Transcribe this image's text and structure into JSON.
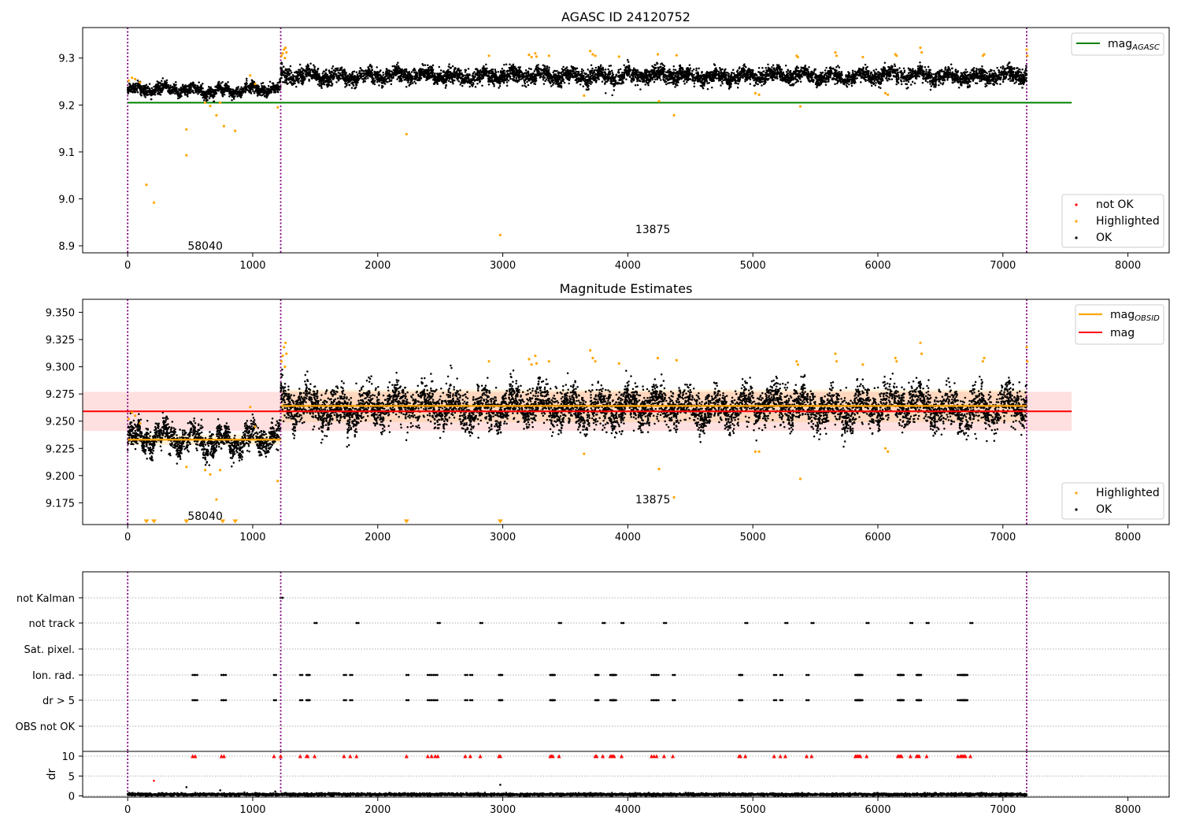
{
  "figure": {
    "background": "#ffffff"
  },
  "chart_data": [
    {
      "type": "scatter",
      "title": "AGASC ID 24120752",
      "xlabel": "",
      "ylabel": "",
      "xlim": [
        -360,
        8330
      ],
      "ylim": [
        8.885,
        9.365
      ],
      "xticks": [
        0,
        1000,
        2000,
        3000,
        4000,
        5000,
        6000,
        7000,
        8000
      ],
      "yticks": [
        8.9,
        9.0,
        9.1,
        9.2,
        9.3
      ],
      "ytick_labels": [
        "8.9",
        "9.0",
        "9.1",
        "9.2",
        "9.3"
      ],
      "obsid_boundaries": [
        0,
        1224,
        7190
      ],
      "annotations": [
        {
          "text": "58040",
          "x": 620,
          "y": 8.9
        },
        {
          "text": "13875",
          "x": 4200,
          "y": 8.935
        }
      ],
      "horizontal_lines": [
        {
          "name": "mag_AGASC",
          "y": 9.205,
          "x0": 0,
          "x1": 7550,
          "color": "#008000"
        }
      ],
      "legend_lines": [
        {
          "label": "mag",
          "subscript": "AGASC",
          "color": "#008000"
        }
      ],
      "legend_points": [
        {
          "label": "not OK",
          "color": "#ff0000"
        },
        {
          "label": "Highlighted",
          "color": "#ffa500"
        },
        {
          "label": "OK",
          "color": "#000000"
        }
      ],
      "legend_placement": "top-right and bottom-right",
      "grid": false,
      "ok_segments": [
        {
          "x0": 0,
          "x1": 1224,
          "mean": 9.232,
          "spread": 0.008
        },
        {
          "x0": 1224,
          "x1": 7190,
          "mean": 9.262,
          "spread": 0.011
        }
      ],
      "highlighted_points": [
        [
          8,
          9.252
        ],
        [
          35,
          9.258
        ],
        [
          60,
          9.255
        ],
        [
          100,
          9.248
        ],
        [
          150,
          9.03
        ],
        [
          210,
          8.992
        ],
        [
          470,
          9.148
        ],
        [
          470,
          9.093
        ],
        [
          620,
          9.205
        ],
        [
          660,
          9.198
        ],
        [
          710,
          9.178
        ],
        [
          740,
          9.205
        ],
        [
          770,
          9.155
        ],
        [
          860,
          9.145
        ],
        [
          980,
          9.263
        ],
        [
          1020,
          9.245
        ],
        [
          1200,
          9.195
        ],
        [
          1230,
          9.305
        ],
        [
          1240,
          9.31
        ],
        [
          1250,
          9.318
        ],
        [
          1258,
          9.3
        ],
        [
          1262,
          9.322
        ],
        [
          1270,
          9.312
        ],
        [
          2230,
          9.138
        ],
        [
          2980,
          8.923
        ],
        [
          2890,
          9.305
        ],
        [
          3210,
          9.307
        ],
        [
          3230,
          9.302
        ],
        [
          3260,
          9.31
        ],
        [
          3270,
          9.303
        ],
        [
          3370,
          9.305
        ],
        [
          3650,
          9.22
        ],
        [
          3700,
          9.315
        ],
        [
          3720,
          9.308
        ],
        [
          3740,
          9.305
        ],
        [
          3930,
          9.303
        ],
        [
          4240,
          9.308
        ],
        [
          4250,
          9.208
        ],
        [
          4370,
          9.178
        ],
        [
          4390,
          9.306
        ],
        [
          5020,
          9.225
        ],
        [
          5050,
          9.222
        ],
        [
          5350,
          9.305
        ],
        [
          5360,
          9.302
        ],
        [
          5380,
          9.197
        ],
        [
          5660,
          9.312
        ],
        [
          5670,
          9.305
        ],
        [
          5880,
          9.302
        ],
        [
          6060,
          9.225
        ],
        [
          6080,
          9.222
        ],
        [
          6140,
          9.308
        ],
        [
          6150,
          9.305
        ],
        [
          6340,
          9.322
        ],
        [
          6350,
          9.312
        ],
        [
          6840,
          9.305
        ],
        [
          6850,
          9.308
        ],
        [
          7190,
          9.318
        ],
        [
          7195,
          9.305
        ]
      ],
      "notok_points": []
    },
    {
      "type": "scatter",
      "title": "Magnitude Estimates",
      "xlabel": "",
      "ylabel": "",
      "xlim": [
        -360,
        8330
      ],
      "ylim": [
        9.155,
        9.362
      ],
      "xticks": [
        0,
        1000,
        2000,
        3000,
        4000,
        5000,
        6000,
        7000,
        8000
      ],
      "yticks": [
        9.175,
        9.2,
        9.225,
        9.25,
        9.275,
        9.3,
        9.325,
        9.35
      ],
      "ytick_labels": [
        "9.175",
        "9.200",
        "9.225",
        "9.250",
        "9.275",
        "9.300",
        "9.325",
        "9.350"
      ],
      "obsid_boundaries": [
        0,
        1224,
        7190
      ],
      "annotations": [
        {
          "text": "58040",
          "x": 620,
          "y": 9.163
        },
        {
          "text": "13875",
          "x": 4200,
          "y": 9.178
        }
      ],
      "mag": {
        "y": 9.259,
        "band": [
          9.241,
          9.277
        ],
        "x0": -360,
        "x1": 7550,
        "color": "#ff0000"
      },
      "mag_obsid": [
        {
          "x0": 0,
          "x1": 1224,
          "y": 9.233,
          "band": [
            9.228,
            9.238
          ]
        },
        {
          "x0": 1224,
          "x1": 7190,
          "y": 9.264,
          "band": [
            9.249,
            9.279
          ]
        }
      ],
      "legend_lines": [
        {
          "label": "mag",
          "subscript": "OBSID",
          "color": "#ffa500"
        },
        {
          "label": "mag",
          "subscript": "",
          "color": "#ff0000"
        }
      ],
      "legend_points": [
        {
          "label": "Highlighted",
          "color": "#ffa500"
        },
        {
          "label": "OK",
          "color": "#000000"
        }
      ],
      "legend_placement": "top-right and bottom-right",
      "grid": false,
      "ok_segments": [
        {
          "x0": 0,
          "x1": 1224,
          "mean": 9.233,
          "spread": 0.008
        },
        {
          "x0": 1224,
          "x1": 7190,
          "mean": 9.263,
          "spread": 0.012
        }
      ],
      "highlighted_points": [
        [
          8,
          9.252
        ],
        [
          35,
          9.258
        ],
        [
          60,
          9.255
        ],
        [
          100,
          9.248
        ],
        [
          470,
          9.208
        ],
        [
          620,
          9.205
        ],
        [
          660,
          9.201
        ],
        [
          710,
          9.178
        ],
        [
          740,
          9.205
        ],
        [
          980,
          9.263
        ],
        [
          1020,
          9.245
        ],
        [
          1200,
          9.195
        ],
        [
          1230,
          9.305
        ],
        [
          1240,
          9.31
        ],
        [
          1250,
          9.318
        ],
        [
          1258,
          9.3
        ],
        [
          1262,
          9.322
        ],
        [
          1270,
          9.312
        ],
        [
          2890,
          9.305
        ],
        [
          3210,
          9.307
        ],
        [
          3230,
          9.302
        ],
        [
          3260,
          9.31
        ],
        [
          3270,
          9.303
        ],
        [
          3370,
          9.305
        ],
        [
          3650,
          9.22
        ],
        [
          3700,
          9.315
        ],
        [
          3720,
          9.308
        ],
        [
          3740,
          9.305
        ],
        [
          3930,
          9.303
        ],
        [
          4240,
          9.308
        ],
        [
          4250,
          9.206
        ],
        [
          4370,
          9.18
        ],
        [
          4390,
          9.306
        ],
        [
          5020,
          9.222
        ],
        [
          5050,
          9.222
        ],
        [
          5350,
          9.305
        ],
        [
          5360,
          9.302
        ],
        [
          5380,
          9.197
        ],
        [
          5660,
          9.312
        ],
        [
          5670,
          9.305
        ],
        [
          5880,
          9.302
        ],
        [
          6060,
          9.225
        ],
        [
          6080,
          9.222
        ],
        [
          6140,
          9.308
        ],
        [
          6150,
          9.305
        ],
        [
          6340,
          9.322
        ],
        [
          6350,
          9.312
        ],
        [
          6840,
          9.305
        ],
        [
          6850,
          9.308
        ],
        [
          7190,
          9.318
        ],
        [
          7195,
          9.305
        ]
      ],
      "offscale_markers_x": [
        150,
        210,
        470,
        760,
        860,
        2230,
        2980
      ]
    },
    {
      "type": "scatter",
      "title": "",
      "xlabel": "",
      "ylabel": "",
      "xlim": [
        -360,
        8330
      ],
      "flag_rows": [
        "not Kalman",
        "not track",
        "Sat. pixel.",
        "Ion. rad.",
        "dr > 5",
        "OBS not OK"
      ],
      "obsid_boundaries": [
        0,
        1224,
        7190
      ],
      "grid": true,
      "flags": {
        "not Kalman": [
          1224
        ],
        "not track": [
          1495,
          1830,
          2480,
          2820,
          3450,
          3800,
          3950,
          4290,
          4940,
          5260,
          5470,
          5910,
          6260,
          6390,
          6740
        ],
        "Sat. pixel.": [],
        "Ion. rad.": [
          520,
          540,
          750,
          770,
          1170,
          1380,
          1430,
          1440,
          1730,
          1780,
          2230,
          2400,
          2430,
          2460,
          2700,
          2740,
          2970,
          2980,
          3380,
          3390,
          3400,
          3740,
          3750,
          3860,
          3870,
          3880,
          3890,
          4190,
          4210,
          4230,
          4360,
          4890,
          4900,
          5170,
          5220,
          5430,
          5820,
          5830,
          5840,
          5850,
          5860,
          6160,
          6170,
          6180,
          6190,
          6310,
          6320,
          6330,
          6640,
          6660,
          6670,
          6680,
          6690,
          6700
        ],
        "dr > 5": [
          520,
          540,
          750,
          770,
          1170,
          1380,
          1430,
          1440,
          1730,
          1780,
          2230,
          2400,
          2430,
          2460,
          2700,
          2740,
          2970,
          2980,
          3380,
          3390,
          3400,
          3740,
          3750,
          3860,
          3870,
          3880,
          3890,
          4190,
          4210,
          4230,
          4360,
          4890,
          4900,
          5170,
          5220,
          5430,
          5820,
          5830,
          5840,
          5850,
          5860,
          6160,
          6170,
          6180,
          6190,
          6310,
          6320,
          6330,
          6640,
          6660,
          6670,
          6680,
          6690,
          6700
        ],
        "OBS not OK": []
      }
    },
    {
      "type": "scatter",
      "title": "",
      "xlabel": "",
      "ylabel": "dr",
      "xlim": [
        -360,
        8330
      ],
      "ylim": [
        -0.3,
        11.2
      ],
      "xticks": [
        0,
        1000,
        2000,
        3000,
        4000,
        5000,
        6000,
        7000,
        8000
      ],
      "yticks": [
        0,
        5,
        10
      ],
      "ytick_labels": [
        "0",
        "5",
        "10"
      ],
      "obsid_boundaries": [
        0,
        1224,
        7190
      ],
      "grid": true,
      "baseline": {
        "x0": 0,
        "x1": 7190,
        "mean": 0.35,
        "spread": 0.25
      },
      "extra_points": [
        [
          210,
          3.8
        ],
        [
          470,
          2.2
        ],
        [
          2980,
          2.8
        ],
        [
          740,
          1.4
        ],
        [
          1180,
          1.1
        ]
      ],
      "capped_markers_x": [
        520,
        540,
        750,
        770,
        1170,
        1224,
        1380,
        1430,
        1440,
        1495,
        1730,
        1780,
        1830,
        2230,
        2400,
        2430,
        2460,
        2480,
        2700,
        2740,
        2820,
        2970,
        2980,
        3380,
        3390,
        3400,
        3450,
        3740,
        3750,
        3800,
        3860,
        3870,
        3880,
        3890,
        3950,
        4190,
        4210,
        4230,
        4290,
        4360,
        4890,
        4900,
        4940,
        5170,
        5220,
        5260,
        5430,
        5470,
        5820,
        5830,
        5840,
        5850,
        5860,
        5910,
        6160,
        6170,
        6180,
        6190,
        6260,
        6310,
        6320,
        6330,
        6390,
        6640,
        6660,
        6670,
        6680,
        6690,
        6700,
        6740
      ]
    }
  ]
}
